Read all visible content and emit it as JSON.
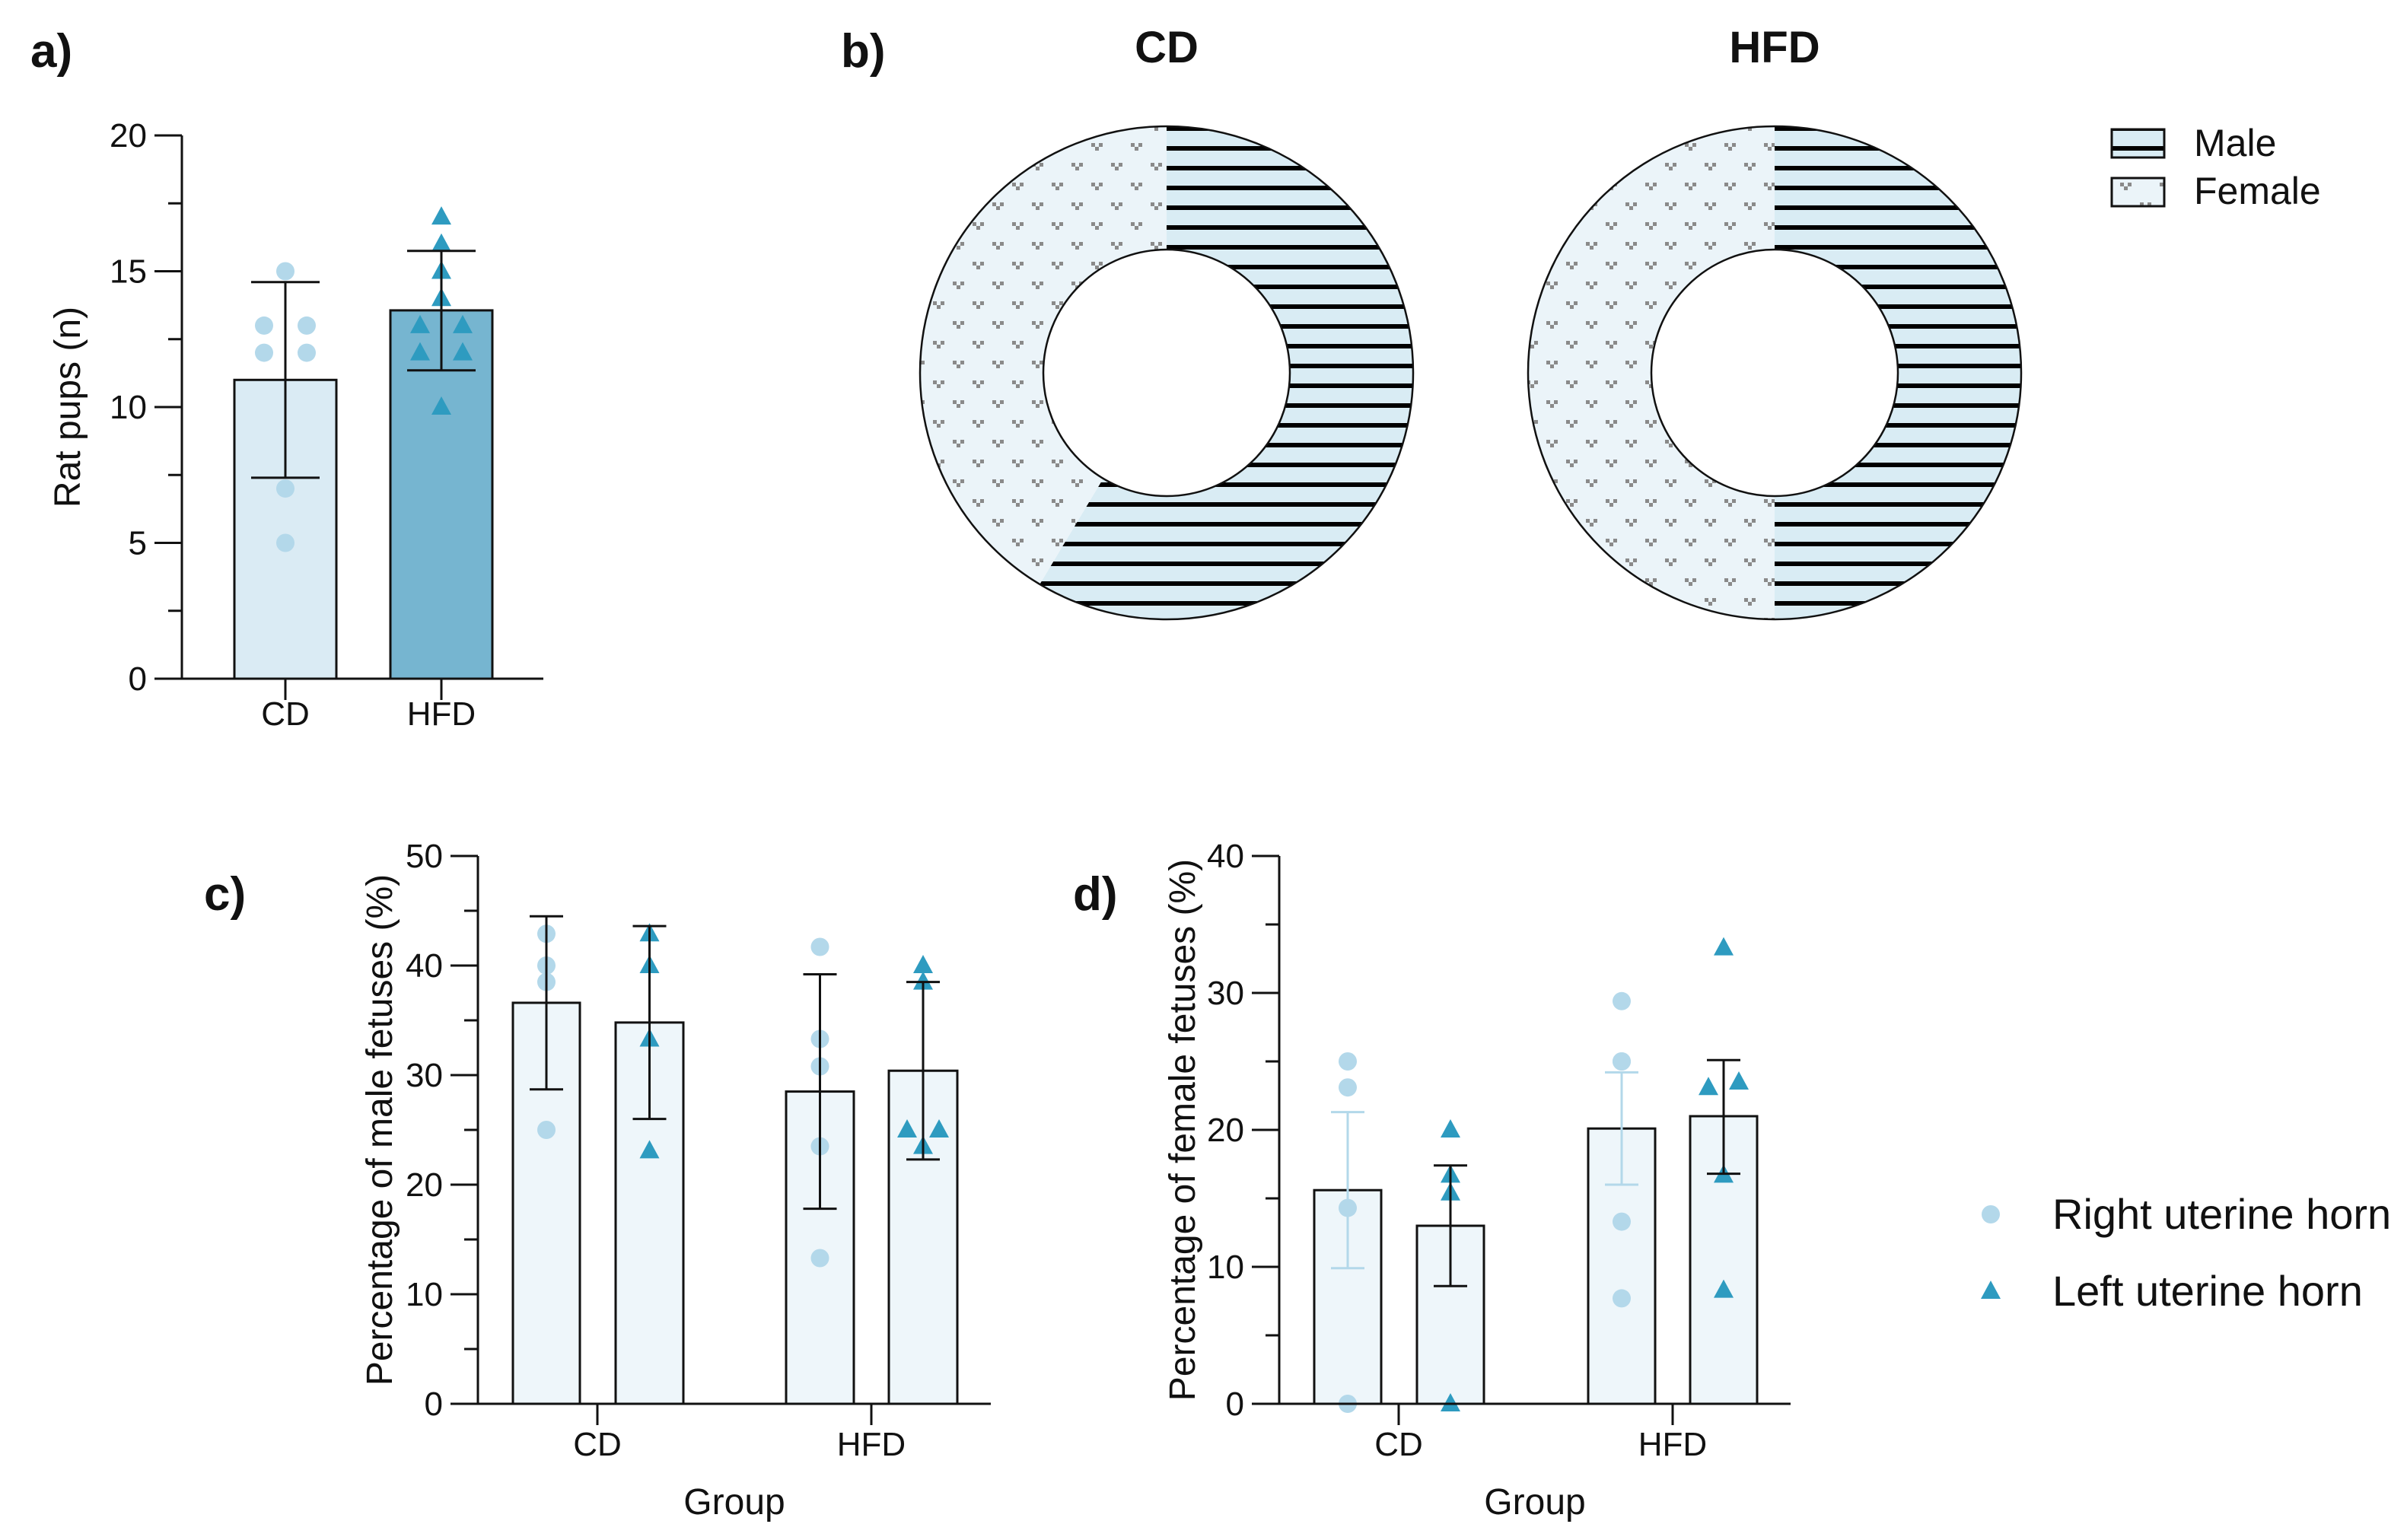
{
  "colors": {
    "right_marker": "#b3d8ea",
    "left_marker": "#2e9bc0",
    "bar_cd_a": "#daebf4",
    "bar_hfd_a": "#76b5d0",
    "bar_cd": "#eef6fa",
    "male_fill": "#d9ecf4",
    "female_fill": "#ebf4f9",
    "female_mark": "#8a8a8a"
  },
  "chart_data": [
    {
      "panel": "a)",
      "type": "bar",
      "categories": [
        "CD",
        "HFD"
      ],
      "ylabel": "Rat pups (n)",
      "xlabel": "",
      "ylim": [
        0,
        20
      ],
      "yticks": [
        "0",
        "5",
        "10",
        "15",
        "20"
      ],
      "series": [
        {
          "name": "CD",
          "marker": "circle",
          "mean": 11.0,
          "err": [
            7.4,
            14.6
          ],
          "points": [
            15,
            13,
            13,
            12,
            12,
            7,
            5
          ]
        },
        {
          "name": "HFD",
          "marker": "triangle",
          "mean": 13.56,
          "err": [
            11.35,
            15.75
          ],
          "points": [
            17,
            16,
            15,
            14,
            13,
            13,
            12,
            12,
            10
          ]
        }
      ]
    },
    {
      "panel": "b)",
      "type": "pie",
      "donuts": [
        {
          "title": "CD",
          "male_percent": 58.6,
          "female_percent": 41.4
        },
        {
          "title": "HFD",
          "male_percent": 50.0,
          "female_percent": 50.0
        }
      ],
      "legend": [
        "Male",
        "Female"
      ],
      "legend_position": "top-right"
    },
    {
      "panel": "c)",
      "type": "bar",
      "categories": [
        "CD",
        "HFD"
      ],
      "ylabel": "Percentage of male fetuses (%)",
      "xlabel": "Group",
      "ylim": [
        0,
        50
      ],
      "yticks": [
        "0",
        "10",
        "20",
        "30",
        "40",
        "50"
      ],
      "series": [
        {
          "name": "CD Right uterine horn",
          "marker": "circle",
          "mean": 36.6,
          "err": [
            28.7,
            44.5
          ],
          "err_color": "#111111",
          "points": [
            42.9,
            40,
            38.5,
            25
          ]
        },
        {
          "name": "CD Left uterine horn",
          "marker": "triangle",
          "mean": 34.8,
          "err": [
            26.0,
            43.6
          ],
          "err_color": "#111111",
          "points": [
            42.9,
            40,
            33.3,
            23.1
          ]
        },
        {
          "name": "HFD Right uterine horn",
          "marker": "circle",
          "mean": 28.5,
          "err": [
            17.8,
            39.2
          ],
          "err_color": "#111111",
          "points": [
            41.7,
            33.3,
            30.8,
            23.5,
            13.3
          ]
        },
        {
          "name": "HFD Left uterine horn",
          "marker": "triangle",
          "mean": 30.4,
          "err": [
            22.3,
            38.5
          ],
          "err_color": "#111111",
          "points": [
            40,
            38.5,
            25,
            25,
            23.5
          ]
        }
      ]
    },
    {
      "panel": "d)",
      "type": "bar",
      "categories": [
        "CD",
        "HFD"
      ],
      "ylabel": "Percentage of female fetuses (%)",
      "xlabel": "Group",
      "ylim": [
        0,
        40
      ],
      "yticks": [
        "0",
        "10",
        "20",
        "30",
        "40"
      ],
      "series": [
        {
          "name": "CD Right uterine horn",
          "marker": "circle",
          "mean": 15.6,
          "err": [
            9.9,
            21.3
          ],
          "err_color": "#b3d8ea",
          "points": [
            25,
            23.1,
            14.3,
            0
          ]
        },
        {
          "name": "CD Left uterine horn",
          "marker": "triangle",
          "mean": 13.0,
          "err": [
            8.6,
            17.4
          ],
          "err_color": "#111111",
          "points": [
            20,
            16.7,
            15.4,
            0
          ]
        },
        {
          "name": "HFD Right uterine horn",
          "marker": "circle",
          "mean": 20.1,
          "err": [
            16.0,
            24.2
          ],
          "err_color": "#b3d8ea",
          "points": [
            29.4,
            25,
            25,
            13.3,
            7.7
          ]
        },
        {
          "name": "HFD Left uterine horn",
          "marker": "triangle",
          "mean": 21.0,
          "err": [
            16.8,
            25.1
          ],
          "err_color": "#111111",
          "points": [
            33.3,
            23.1,
            23.5,
            16.7,
            8.3
          ]
        }
      ]
    }
  ],
  "bottom_legend": [
    "Right uterine horn",
    "Left uterine horn"
  ]
}
